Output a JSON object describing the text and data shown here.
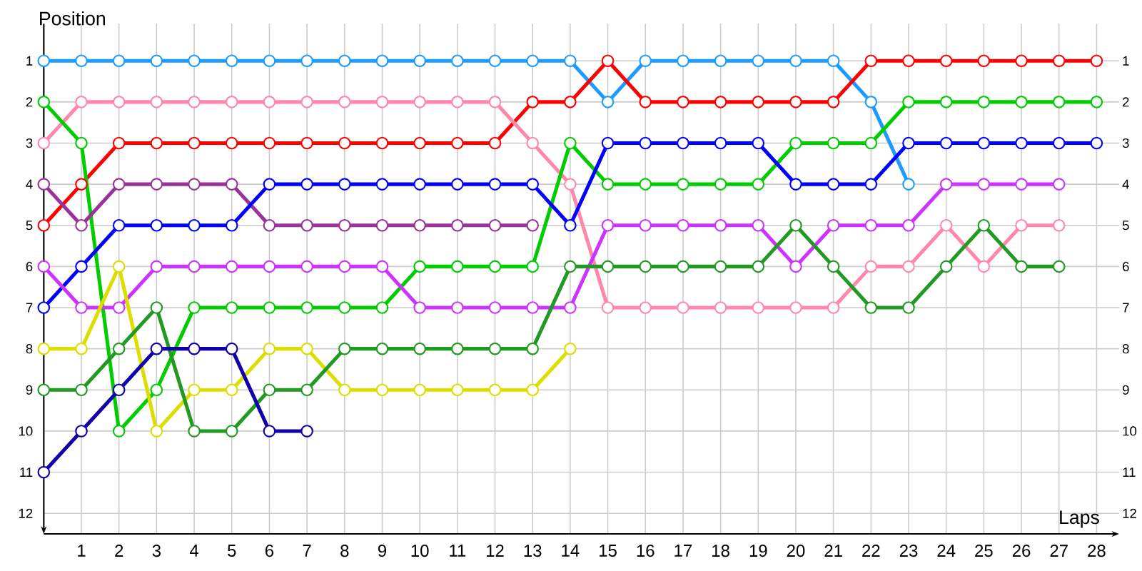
{
  "chart_data": {
    "type": "line",
    "xlabel": "Laps",
    "ylabel": "Position",
    "x": [
      0,
      1,
      2,
      3,
      4,
      5,
      6,
      7,
      8,
      9,
      10,
      11,
      12,
      13,
      14,
      15,
      16,
      17,
      18,
      19,
      20,
      21,
      22,
      23,
      24,
      25,
      26,
      27,
      28
    ],
    "xlim": [
      0,
      28.6
    ],
    "xticks": [
      1,
      2,
      3,
      4,
      5,
      6,
      7,
      8,
      9,
      10,
      11,
      12,
      13,
      14,
      15,
      16,
      17,
      18,
      19,
      20,
      21,
      22,
      23,
      24,
      25,
      26,
      27,
      28
    ],
    "ylim": [
      12.5,
      0.1
    ],
    "yticks": [
      1,
      2,
      3,
      4,
      5,
      6,
      7,
      8,
      9,
      10,
      11,
      12
    ],
    "y2lim": [
      12.5,
      0.1
    ],
    "y2ticks": [
      1,
      2,
      3,
      4,
      5,
      6,
      7,
      8,
      9,
      10,
      11,
      12
    ],
    "grid": true,
    "marker": "circle",
    "line_style": "solid",
    "series": [
      {
        "color": "#1e9bff",
        "values": [
          1,
          1,
          1,
          1,
          1,
          1,
          1,
          1,
          1,
          1,
          1,
          1,
          1,
          1,
          1,
          2,
          1,
          1,
          1,
          1,
          1,
          1,
          2,
          4,
          null,
          null,
          null,
          null,
          null
        ]
      },
      {
        "color": "#ff0000",
        "values": [
          5,
          4,
          3,
          3,
          3,
          3,
          3,
          3,
          3,
          3,
          3,
          3,
          3,
          2,
          2,
          1,
          2,
          2,
          2,
          2,
          2,
          2,
          1,
          1,
          1,
          1,
          1,
          1,
          1
        ]
      },
      {
        "color": "#ff88aa",
        "values": [
          3,
          2,
          2,
          2,
          2,
          2,
          2,
          2,
          2,
          2,
          2,
          2,
          2,
          3,
          4,
          7,
          7,
          7,
          7,
          7,
          7,
          7,
          6,
          6,
          5,
          6,
          5,
          5,
          null
        ]
      },
      {
        "color": "#00cc00",
        "values": [
          2,
          3,
          10,
          9,
          7,
          7,
          7,
          7,
          7,
          7,
          6,
          6,
          6,
          6,
          3,
          4,
          4,
          4,
          4,
          4,
          3,
          3,
          3,
          2,
          2,
          2,
          2,
          2,
          2
        ]
      },
      {
        "color": "#993399",
        "values": [
          4,
          5,
          4,
          4,
          4,
          4,
          5,
          5,
          5,
          5,
          5,
          5,
          5,
          5,
          null,
          null,
          null,
          null,
          null,
          null,
          null,
          null,
          null,
          null,
          null,
          null,
          null,
          null,
          null
        ]
      },
      {
        "color": "#0000ff",
        "values": [
          7,
          6,
          5,
          5,
          5,
          5,
          4,
          4,
          4,
          4,
          4,
          4,
          4,
          4,
          5,
          3,
          3,
          3,
          3,
          3,
          4,
          4,
          4,
          3,
          3,
          3,
          3,
          3,
          3
        ]
      },
      {
        "color": "#cc33ff",
        "values": [
          6,
          7,
          7,
          6,
          6,
          6,
          6,
          6,
          6,
          6,
          7,
          7,
          7,
          7,
          7,
          5,
          5,
          5,
          5,
          5,
          6,
          5,
          5,
          5,
          4,
          4,
          4,
          4,
          null
        ]
      },
      {
        "color": "#dddd00",
        "values": [
          8,
          8,
          6,
          10,
          9,
          9,
          8,
          8,
          9,
          9,
          9,
          9,
          9,
          9,
          8,
          null,
          null,
          null,
          null,
          null,
          null,
          null,
          null,
          null,
          null,
          null,
          null,
          null,
          null
        ]
      },
      {
        "color": "#229922",
        "values": [
          9,
          9,
          8,
          7,
          10,
          10,
          9,
          9,
          8,
          8,
          8,
          8,
          8,
          8,
          6,
          6,
          6,
          6,
          6,
          6,
          5,
          6,
          7,
          7,
          6,
          5,
          6,
          6,
          null
        ]
      },
      {
        "color": "#1100aa",
        "values": [
          11,
          10,
          9,
          8,
          8,
          8,
          10,
          10,
          null,
          null,
          null,
          null,
          null,
          null,
          null,
          null,
          null,
          null,
          null,
          null,
          null,
          null,
          null,
          null,
          null,
          null,
          null,
          null,
          null
        ]
      }
    ]
  }
}
